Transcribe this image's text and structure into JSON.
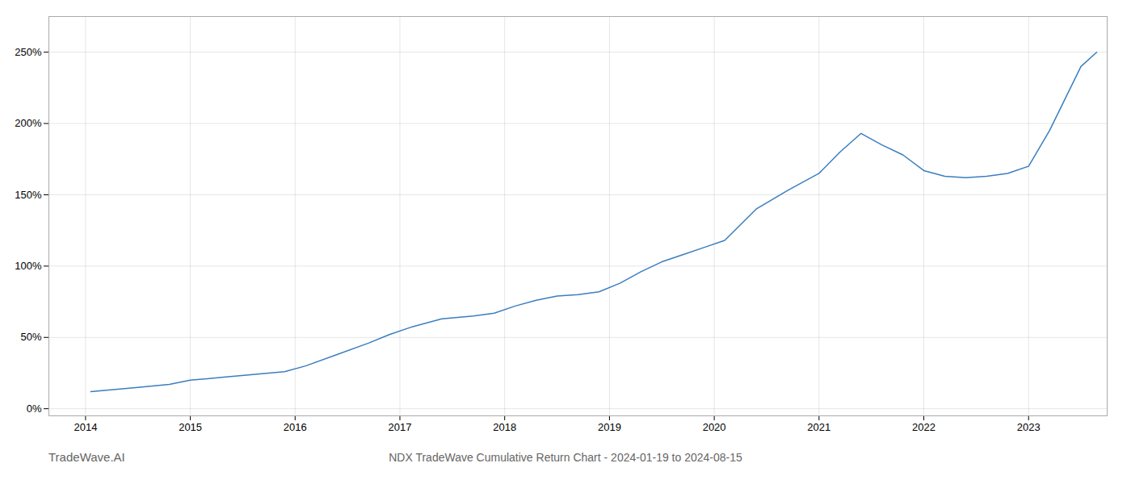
{
  "chart_data": {
    "type": "line",
    "title": "NDX TradeWave Cumulative Return Chart - 2024-01-19 to 2024-08-15",
    "annotations": [
      "TradeWave.AI"
    ],
    "color": "#3a7ebf",
    "grid": true,
    "x": [
      2014.05,
      2014.2,
      2014.5,
      2014.8,
      2015.0,
      2015.3,
      2015.6,
      2015.9,
      2016.1,
      2016.4,
      2016.7,
      2016.9,
      2017.1,
      2017.4,
      2017.7,
      2017.9,
      2018.1,
      2018.3,
      2018.5,
      2018.7,
      2018.9,
      2019.1,
      2019.3,
      2019.5,
      2019.7,
      2019.9,
      2020.1,
      2020.4,
      2020.7,
      2021.0,
      2021.2,
      2021.4,
      2021.6,
      2021.8,
      2022.0,
      2022.2,
      2022.4,
      2022.6,
      2022.8,
      2023.0,
      2023.2,
      2023.5,
      2023.65
    ],
    "values": [
      12,
      13,
      15,
      17,
      20,
      22,
      24,
      26,
      30,
      38,
      46,
      52,
      57,
      63,
      65,
      67,
      72,
      76,
      79,
      80,
      82,
      88,
      96,
      103,
      108,
      113,
      118,
      140,
      153,
      165,
      180,
      193,
      185,
      178,
      167,
      163,
      162,
      163,
      165,
      170,
      195,
      240,
      250
    ],
    "xlim": [
      2013.65,
      2023.75
    ],
    "xticks": [
      2014,
      2015,
      2016,
      2017,
      2018,
      2019,
      2020,
      2021,
      2022,
      2023
    ],
    "ylim": [
      -5,
      275
    ],
    "yticks": [
      {
        "value": 0,
        "label": "0%"
      },
      {
        "value": 50,
        "label": "50%"
      },
      {
        "value": 100,
        "label": "100%"
      },
      {
        "value": 150,
        "label": "150%"
      },
      {
        "value": 200,
        "label": "200%"
      },
      {
        "value": 250,
        "label": "250%"
      }
    ]
  }
}
